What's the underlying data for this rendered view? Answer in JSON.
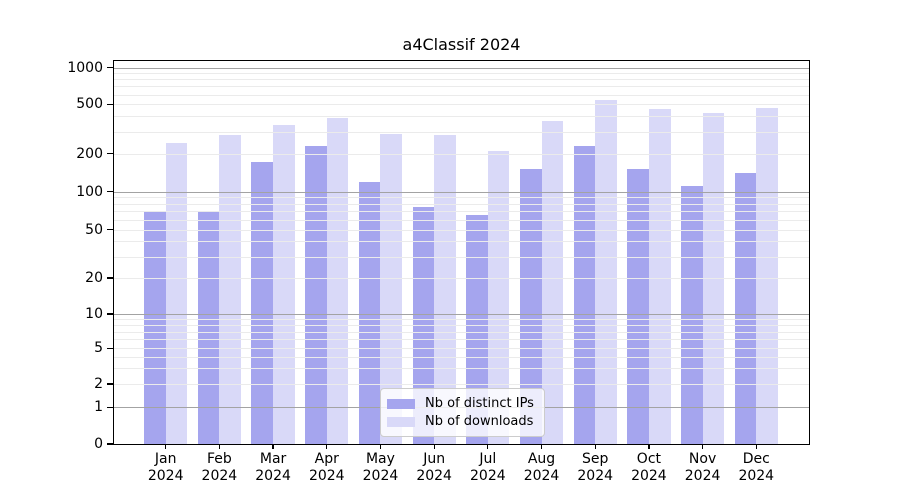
{
  "title": "a4Classif 2024",
  "legend": {
    "items": [
      {
        "label": "Nb of distinct IPs"
      },
      {
        "label": "Nb of downloads"
      }
    ]
  },
  "chart_data": {
    "type": "bar",
    "title": "a4Classif 2024",
    "categories": [
      "Jan",
      "Feb",
      "Mar",
      "Apr",
      "May",
      "Jun",
      "Jul",
      "Aug",
      "Sep",
      "Oct",
      "Nov",
      "Dec"
    ],
    "x_year_label": "2024",
    "series": [
      {
        "name": "Nb of distinct IPs",
        "color": "#a5a5ee",
        "values": [
          70,
          70,
          170,
          230,
          120,
          75,
          65,
          150,
          230,
          150,
          110,
          140
        ]
      },
      {
        "name": "Nb of downloads",
        "color": "#d9d9f8",
        "values": [
          245,
          280,
          340,
          390,
          290,
          280,
          210,
          365,
          540,
          455,
          425,
          465
        ]
      }
    ],
    "y_ticks": [
      1000,
      500,
      200,
      100,
      50,
      20,
      10,
      5,
      2,
      1,
      0
    ],
    "y_scale": "symlog",
    "ylim": [
      0,
      1100
    ],
    "grid": "horizontal major and minor gridlines drawn over bars",
    "legend_position": "lower center inside plot",
    "grid_colors": {
      "major": "#a3a3a3",
      "minor": "#ebebeb"
    }
  }
}
